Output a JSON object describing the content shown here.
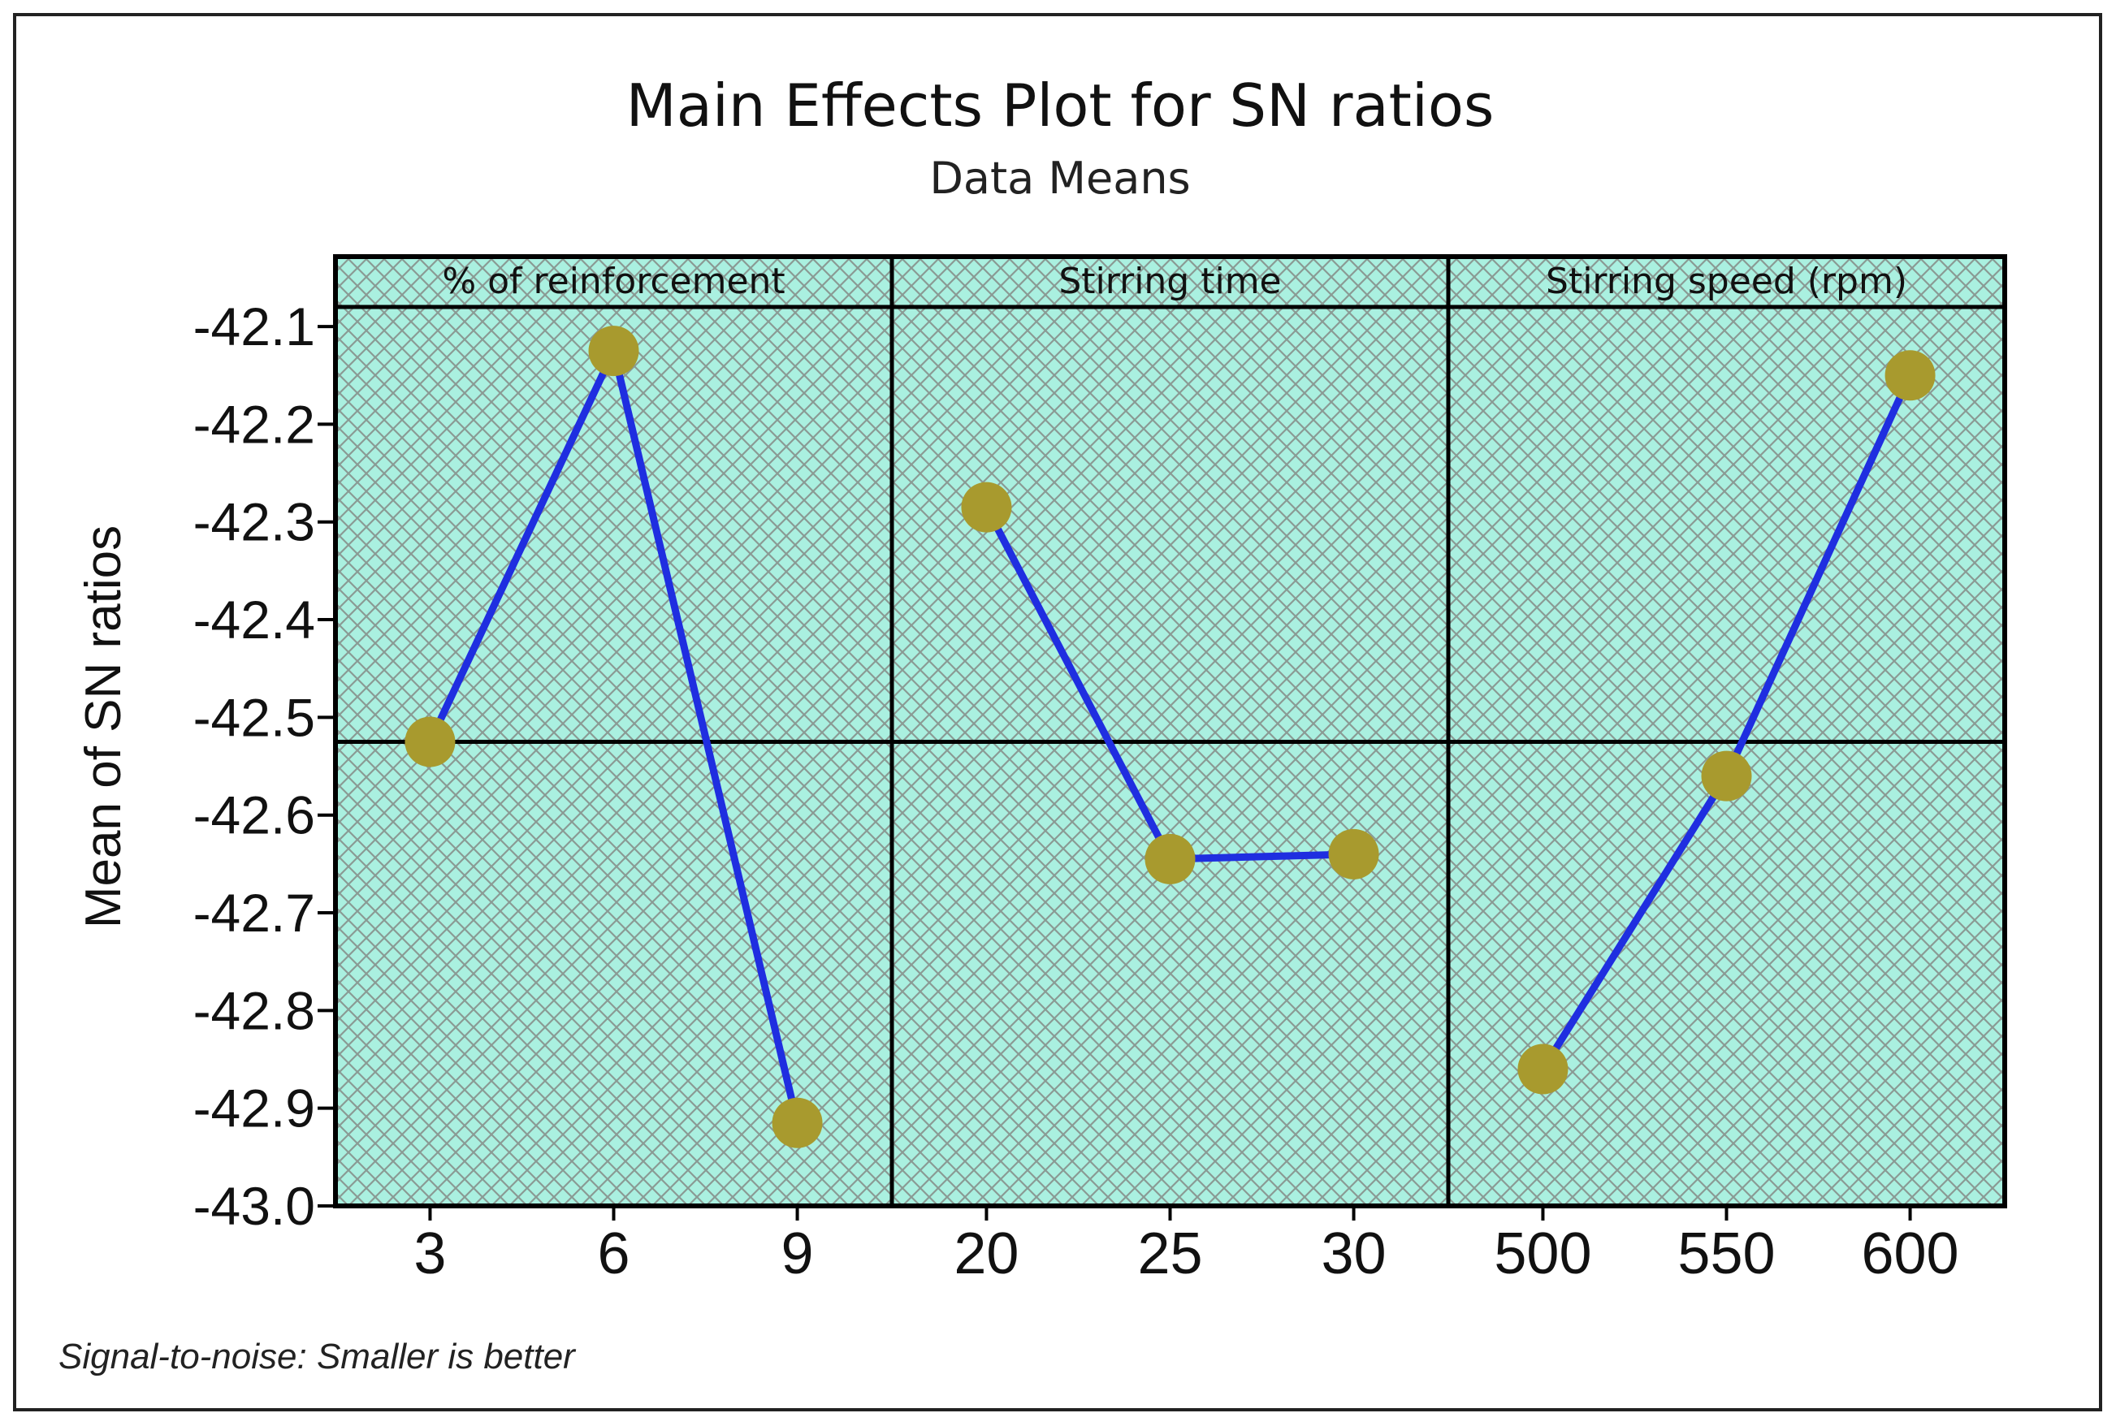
{
  "chart_data": {
    "type": "line",
    "title": "Main Effects Plot for SN ratios",
    "subtitle": "Data Means",
    "ylabel": "Mean of SN ratios",
    "ylim": [
      -43.0,
      -42.08
    ],
    "yticks": [
      -42.1,
      -42.2,
      -42.3,
      -42.4,
      -42.5,
      -42.6,
      -42.7,
      -42.8,
      -42.9,
      -43.0
    ],
    "ytick_labels": [
      "-42.1",
      "-42.2",
      "-42.3",
      "-42.4",
      "-42.5",
      "-42.6",
      "-42.7",
      "-42.8",
      "-42.9",
      "-43.0"
    ],
    "reference_line": -42.525,
    "footnote": "Signal-to-noise: Smaller is better",
    "colors": {
      "line": "#1f2ee0",
      "marker": "#a89a2e",
      "panel_fill": "#aaf0e0",
      "hatch": "#8a9a94",
      "frame": "#000000"
    },
    "panels": [
      {
        "name": "% of reinforcement",
        "x": [
          "3",
          "6",
          "9"
        ],
        "values": [
          -42.525,
          -42.125,
          -42.915
        ]
      },
      {
        "name": "Stirring time",
        "x": [
          "20",
          "25",
          "30"
        ],
        "values": [
          -42.285,
          -42.645,
          -42.64
        ]
      },
      {
        "name": "Stirring speed (rpm)",
        "x": [
          "500",
          "550",
          "600"
        ],
        "values": [
          -42.86,
          -42.56,
          -42.15
        ]
      }
    ]
  }
}
